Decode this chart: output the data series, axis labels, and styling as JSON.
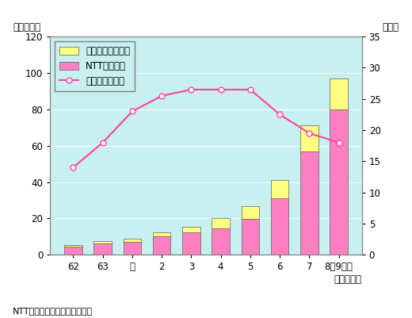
{
  "categories": [
    "62",
    "63",
    "元",
    "2",
    "3",
    "4",
    "5",
    "6",
    "7",
    "8年9月末"
  ],
  "ntt_values": [
    4.5,
    6.0,
    7.0,
    10.0,
    12.5,
    14.5,
    19.5,
    31.0,
    57.0,
    80.0
  ],
  "new_values": [
    0.8,
    1.5,
    2.0,
    2.5,
    3.0,
    5.5,
    7.0,
    10.0,
    14.0,
    17.0
  ],
  "share_values": [
    14.0,
    18.0,
    23.0,
    25.5,
    26.5,
    26.5,
    26.5,
    22.5,
    19.5,
    18.0
  ],
  "bar_color_ntt": "#FF80C0",
  "bar_color_new": "#FFFF80",
  "bar_edge_color": "#606060",
  "line_color": "#FF40A0",
  "line_marker_face": "white",
  "bg_color": "#C8F0F0",
  "top_label_left": "（千回線）",
  "top_label_right": "（％）",
  "xlabel": "（年度末）",
  "ylim_left": [
    0,
    120
  ],
  "ylim_right": [
    0,
    35
  ],
  "yticks_left": [
    0,
    20,
    40,
    60,
    80,
    100,
    120
  ],
  "yticks_right": [
    0,
    5,
    10,
    15,
    20,
    25,
    30,
    35
  ],
  "footnote": "NTT、新事業者資料により作成",
  "legend_new": "新事業者の回線数",
  "legend_ntt": "NTTの回線数",
  "legend_share": "新事業者シェア"
}
